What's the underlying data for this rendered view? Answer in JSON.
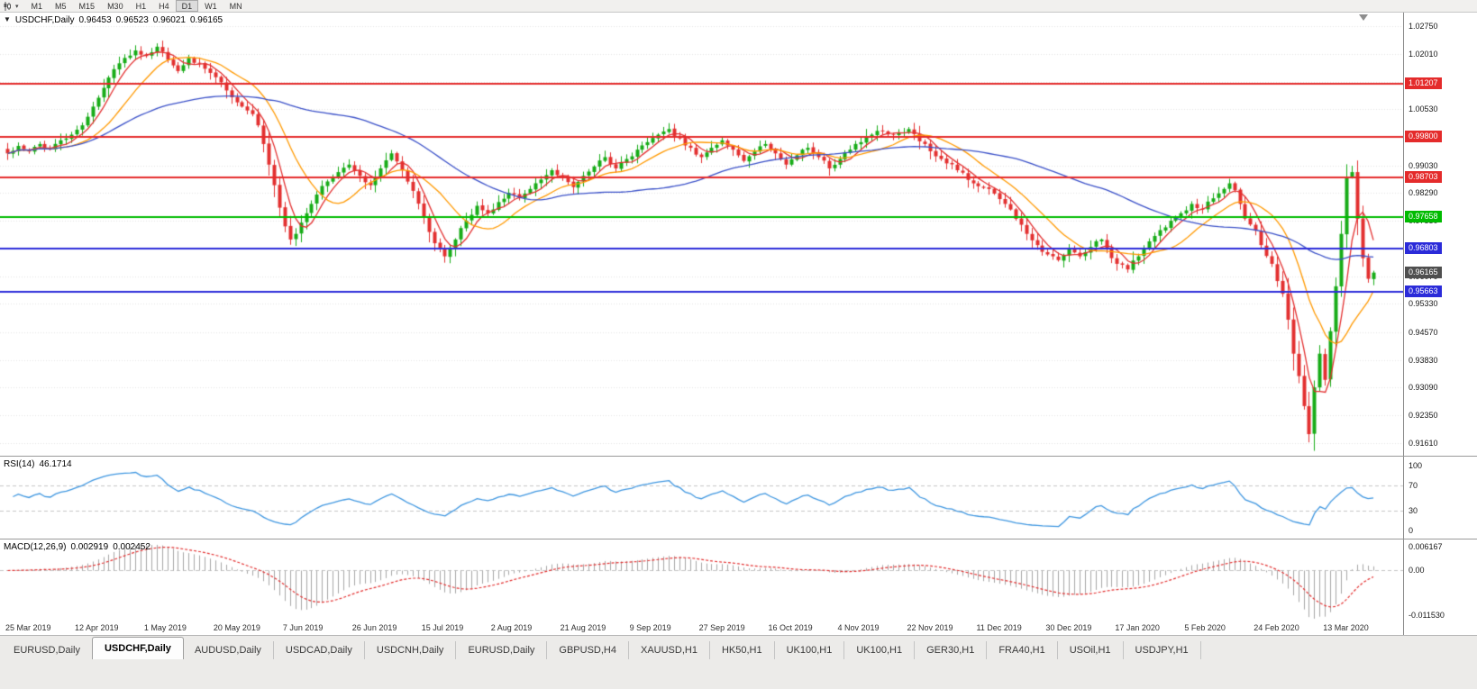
{
  "icons": {
    "dropdown_caret": "▼",
    "toolbar_caret": "▾"
  },
  "toolbar": {
    "timeframes": [
      "M1",
      "M5",
      "M15",
      "M30",
      "H1",
      "H4",
      "D1",
      "W1",
      "MN"
    ],
    "active_timeframe": "D1"
  },
  "chart": {
    "symbol_label": "USDCHF,Daily",
    "ohlc": {
      "open": "0.96453",
      "high": "0.96523",
      "low": "0.96021",
      "close": "0.96165"
    },
    "price_axis_ticks": [
      "1.02750",
      "1.02010",
      "1.01270",
      "1.00530",
      "0.99790",
      "0.99030",
      "0.98290",
      "0.97550",
      "0.96810",
      "0.96070",
      "0.95330",
      "0.94570",
      "0.93830",
      "0.93090",
      "0.92350",
      "0.91610"
    ],
    "levels": [
      {
        "label": "1.01207",
        "price": 1.01207,
        "color": "#e42b2b",
        "kind": "resistance"
      },
      {
        "label": "0.99800",
        "price": 0.998,
        "color": "#e42b2b",
        "kind": "resistance"
      },
      {
        "label": "0.98703",
        "price": 0.98703,
        "color": "#e42b2b",
        "kind": "resistance"
      },
      {
        "label": "0.97658",
        "price": 0.97658,
        "color": "#00bb00",
        "kind": "pivot"
      },
      {
        "label": "0.96803",
        "price": 0.96803,
        "color": "#2b2bd9",
        "kind": "support"
      },
      {
        "label": "0.95663",
        "price": 0.95663,
        "color": "#2b2bd9",
        "kind": "support"
      }
    ],
    "current_price_tag": {
      "label": "0.96165",
      "price": 0.96165,
      "bg": "#4f4f4f"
    },
    "date_axis": [
      "25 Mar 2019",
      "12 Apr 2019",
      "1 May 2019",
      "20 May 2019",
      "7 Jun 2019",
      "26 Jun 2019",
      "15 Jul 2019",
      "2 Aug 2019",
      "21 Aug 2019",
      "9 Sep 2019",
      "27 Sep 2019",
      "16 Oct 2019",
      "4 Nov 2019",
      "22 Nov 2019",
      "11 Dec 2019",
      "30 Dec 2019",
      "17 Jan 2020",
      "5 Feb 2020",
      "24 Feb 2020",
      "13 Mar 2020"
    ]
  },
  "chart_data": {
    "type": "candlestick",
    "symbol": "USDCHF",
    "timeframe": "Daily",
    "bar_count": 257,
    "bars_per_date_label": 13,
    "price_range": {
      "axis_top": 1.0275,
      "axis_bottom": 0.9161
    },
    "close_anchors": [
      [
        0,
        0.9935
      ],
      [
        2,
        0.9955
      ],
      [
        4,
        0.994
      ],
      [
        6,
        0.996
      ],
      [
        8,
        0.9945
      ],
      [
        10,
        0.997
      ],
      [
        12,
        0.9985
      ],
      [
        14,
        1.001
      ],
      [
        16,
        1.006
      ],
      [
        18,
        1.011
      ],
      [
        20,
        1.016
      ],
      [
        22,
        1.019
      ],
      [
        24,
        1.021
      ],
      [
        26,
        1.0195
      ],
      [
        28,
        1.022
      ],
      [
        30,
        1.0185
      ],
      [
        32,
        1.0155
      ],
      [
        34,
        1.019
      ],
      [
        36,
        1.0175
      ],
      [
        38,
        1.015
      ],
      [
        40,
        1.0125
      ],
      [
        42,
        1.0085
      ],
      [
        44,
        1.006
      ],
      [
        46,
        1.004
      ],
      [
        47,
        1.001
      ],
      [
        48,
        0.996
      ],
      [
        49,
        0.9905
      ],
      [
        50,
        0.985
      ],
      [
        51,
        0.979
      ],
      [
        52,
        0.974
      ],
      [
        53,
        0.9705
      ],
      [
        54,
        0.972
      ],
      [
        55,
        0.975
      ],
      [
        56,
        0.9775
      ],
      [
        57,
        0.98
      ],
      [
        58,
        0.9825
      ],
      [
        60,
        0.986
      ],
      [
        62,
        0.9885
      ],
      [
        64,
        0.9905
      ],
      [
        66,
        0.9875
      ],
      [
        68,
        0.985
      ],
      [
        70,
        0.9895
      ],
      [
        72,
        0.9935
      ],
      [
        74,
        0.989
      ],
      [
        76,
        0.9835
      ],
      [
        78,
        0.9765
      ],
      [
        80,
        0.9695
      ],
      [
        82,
        0.966
      ],
      [
        84,
        0.9705
      ],
      [
        86,
        0.9755
      ],
      [
        88,
        0.9795
      ],
      [
        90,
        0.9775
      ],
      [
        92,
        0.9805
      ],
      [
        94,
        0.983
      ],
      [
        96,
        0.9815
      ],
      [
        98,
        0.984
      ],
      [
        100,
        0.9865
      ],
      [
        102,
        0.989
      ],
      [
        104,
        0.987
      ],
      [
        106,
        0.9845
      ],
      [
        108,
        0.9875
      ],
      [
        110,
        0.99
      ],
      [
        112,
        0.9925
      ],
      [
        114,
        0.9895
      ],
      [
        116,
        0.992
      ],
      [
        118,
        0.9945
      ],
      [
        120,
        0.9965
      ],
      [
        122,
        0.9985
      ],
      [
        124,
        1.0
      ],
      [
        126,
        0.9975
      ],
      [
        128,
        0.995
      ],
      [
        130,
        0.9925
      ],
      [
        132,
        0.995
      ],
      [
        134,
        0.997
      ],
      [
        136,
        0.9945
      ],
      [
        138,
        0.9915
      ],
      [
        140,
        0.994
      ],
      [
        142,
        0.996
      ],
      [
        144,
        0.9935
      ],
      [
        146,
        0.9905
      ],
      [
        148,
        0.993
      ],
      [
        150,
        0.995
      ],
      [
        152,
        0.9925
      ],
      [
        154,
        0.9895
      ],
      [
        156,
        0.992
      ],
      [
        158,
        0.9945
      ],
      [
        160,
        0.9965
      ],
      [
        162,
        0.9985
      ],
      [
        164,
        0.9995
      ],
      [
        166,
        0.9985
      ],
      [
        169,
        1.0
      ],
      [
        172,
        0.996
      ],
      [
        175,
        0.992
      ],
      [
        178,
        0.989
      ],
      [
        181,
        0.9855
      ],
      [
        184,
        0.984
      ],
      [
        187,
        0.98
      ],
      [
        189,
        0.976
      ],
      [
        191,
        0.972
      ],
      [
        193,
        0.969
      ],
      [
        195,
        0.9665
      ],
      [
        197,
        0.965
      ],
      [
        199,
        0.968
      ],
      [
        201,
        0.966
      ],
      [
        203,
        0.9685
      ],
      [
        205,
        0.9705
      ],
      [
        206,
        0.968
      ],
      [
        208,
        0.964
      ],
      [
        210,
        0.9625
      ],
      [
        212,
        0.966
      ],
      [
        214,
        0.97
      ],
      [
        216,
        0.973
      ],
      [
        218,
        0.9755
      ],
      [
        220,
        0.9775
      ],
      [
        222,
        0.98
      ],
      [
        224,
        0.9785
      ],
      [
        226,
        0.9815
      ],
      [
        228,
        0.984
      ],
      [
        229,
        0.9855
      ],
      [
        231,
        0.98
      ],
      [
        233,
        0.9745
      ],
      [
        235,
        0.969
      ],
      [
        237,
        0.964
      ],
      [
        239,
        0.956
      ],
      [
        241,
        0.94
      ],
      [
        243,
        0.926
      ],
      [
        244,
        0.9185
      ],
      [
        245,
        0.931
      ],
      [
        246,
        0.94
      ],
      [
        247,
        0.933
      ],
      [
        248,
        0.946
      ],
      [
        249,
        0.958
      ],
      [
        250,
        0.972
      ],
      [
        251,
        0.987
      ],
      [
        252,
        0.9885
      ],
      [
        253,
        0.976
      ],
      [
        254,
        0.9655
      ],
      [
        255,
        0.96
      ],
      [
        256,
        0.96165
      ]
    ],
    "key_extremes": {
      "crash_low": 0.9163,
      "rebound_high": 0.9902,
      "year_high": 1.0229
    },
    "candle_colors": {
      "up": "#17ac17",
      "down": "#e33030"
    },
    "moving_averages": [
      {
        "name": "fast",
        "period": 5,
        "color": "#e33030"
      },
      {
        "name": "medium",
        "period": 13,
        "color": "#ff9900"
      },
      {
        "name": "slow",
        "period": 50,
        "color": "#3a50c8"
      }
    ]
  },
  "rsi": {
    "name": "RSI(14)",
    "value": "46.1714",
    "period": 14,
    "axis_ticks": [
      "100",
      "70",
      "30",
      "0"
    ],
    "dashed_levels": [
      70,
      30
    ],
    "line_color": "#3e96e0"
  },
  "macd": {
    "name": "MACD(12,26,9)",
    "main_value": "0.002919",
    "signal_value": "0.002452",
    "fast": 12,
    "slow": 26,
    "signal": 9,
    "axis_ticks": [
      "0.006167",
      "0.00",
      "-0.011530"
    ],
    "axis_max": 0.006167,
    "axis_min": -0.01153,
    "histogram_color": "#a6a6a6",
    "signal_color": "#e33030"
  },
  "tabs": {
    "active_index": 1,
    "items": [
      "EURUSD,Daily",
      "USDCHF,Daily",
      "AUDUSD,Daily",
      "USDCAD,Daily",
      "USDCNH,Daily",
      "EURUSD,Daily",
      "GBPUSD,H4",
      "XAUUSD,H1",
      "HK50,H1",
      "UK100,H1",
      "UK100,H1",
      "GER30,H1",
      "FRA40,H1",
      "USOil,H1",
      "USDJPY,H1"
    ]
  }
}
